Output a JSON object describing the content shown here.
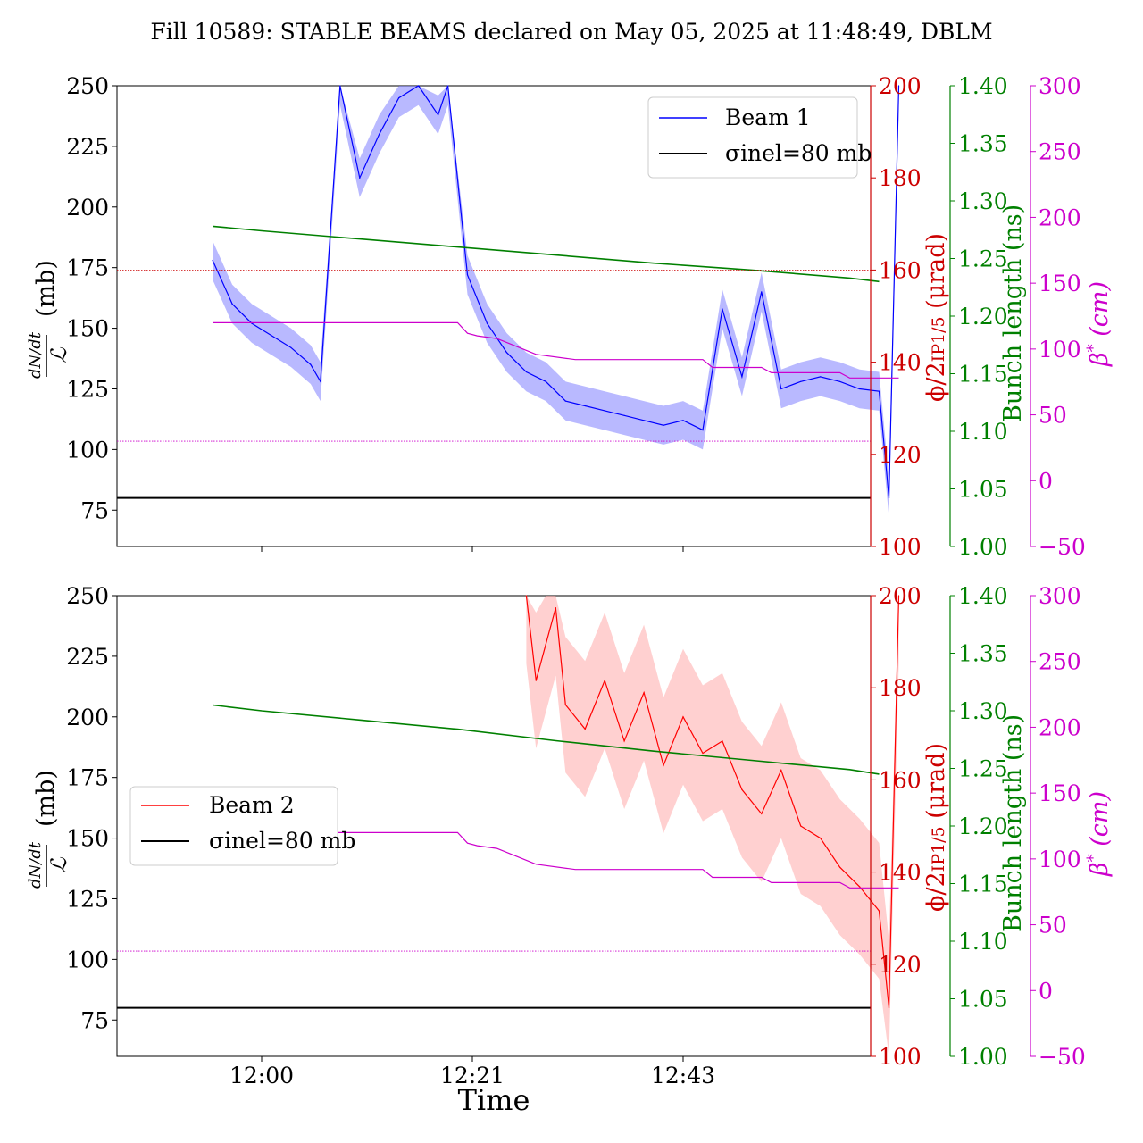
{
  "title": "Fill 10589: STABLE BEAMS declared on May 05, 2025 at 11:48:49, DBLM",
  "xlabel": "Time",
  "colors": {
    "beam1": "#0000ff",
    "beam1_band": "#8080ff",
    "beam2": "#ff0000",
    "beam2_band": "#ffaaaa",
    "bunch_length": "#008000",
    "beta_star": "#cc00cc",
    "crossing_angle": "#cc0000",
    "sigma": "#000000"
  },
  "chart_data": [
    {
      "type": "line",
      "panel": "top",
      "x_ticks": [
        "12:00",
        "12:21",
        "12:43"
      ],
      "ylabel": "dN/dt / L (mb)",
      "ylim": [
        60,
        250
      ],
      "y_ticks": [
        "75",
        "100",
        "125",
        "150",
        "175",
        "200",
        "225",
        "250"
      ],
      "legend": {
        "position": "top-right",
        "entries": [
          "Beam 1",
          "σinel=80 mb"
        ]
      },
      "sigma_inel_mb": 80,
      "axes": {
        "crossing_angle": {
          "label": "ϕ/2IP1/5 (μrad)",
          "range": [
            100,
            200
          ],
          "ticks": [
            "100",
            "120",
            "140",
            "160",
            "180",
            "200"
          ]
        },
        "bunch_length": {
          "label": "Bunch length (ns)",
          "range": [
            1.0,
            1.4
          ],
          "ticks": [
            "1.00",
            "1.05",
            "1.10",
            "1.15",
            "1.20",
            "1.25",
            "1.30",
            "1.35",
            "1.40"
          ]
        },
        "beta_star": {
          "label": "β* (cm)",
          "range": [
            -50,
            300
          ],
          "ticks": [
            "−50",
            "0",
            "50",
            "100",
            "150",
            "200",
            "250",
            "300"
          ]
        }
      },
      "series": [
        {
          "name": "Beam 1",
          "x_min": [
            -5,
            -3,
            -1,
            1,
            3,
            5,
            6,
            8,
            10,
            12,
            14,
            16,
            18,
            19,
            21,
            23,
            25,
            27,
            29,
            31,
            33,
            35,
            37,
            39,
            41,
            43,
            45,
            47,
            49,
            51,
            53,
            55,
            57,
            59,
            61,
            63,
            64,
            65
          ],
          "values": [
            178,
            160,
            152,
            147,
            142,
            135,
            128,
            250,
            212,
            230,
            245,
            250,
            238,
            250,
            172,
            152,
            140,
            132,
            128,
            120,
            118,
            116,
            114,
            112,
            110,
            112,
            108,
            158,
            130,
            165,
            125,
            128,
            130,
            128,
            125,
            124,
            80,
            250
          ],
          "band": 8
        },
        {
          "name": "Bunch length",
          "x_min": [
            -5,
            0,
            10,
            20,
            30,
            40,
            50,
            60,
            63
          ],
          "values": [
            1.278,
            1.274,
            1.267,
            1.26,
            1.253,
            1.246,
            1.24,
            1.233,
            1.23
          ]
        },
        {
          "name": "β*",
          "x_min": [
            -5,
            20,
            21,
            22,
            24,
            26,
            28,
            32,
            45,
            46,
            51,
            52,
            59,
            60,
            65
          ],
          "values": [
            120,
            120,
            112,
            110,
            108,
            102,
            96,
            92,
            92,
            86,
            86,
            82,
            82,
            78,
            78
          ]
        },
        {
          "name": "Crossing angle",
          "x_min": [
            -12,
            65
          ],
          "values": [
            160,
            160
          ]
        }
      ]
    },
    {
      "type": "line",
      "panel": "bottom",
      "x_ticks": [
        "12:00",
        "12:21",
        "12:43"
      ],
      "ylabel": "dN/dt / L (mb)",
      "ylim": [
        60,
        250
      ],
      "y_ticks": [
        "75",
        "100",
        "125",
        "150",
        "175",
        "200",
        "225",
        "250"
      ],
      "legend": {
        "position": "center-left",
        "entries": [
          "Beam 2",
          "σinel=80 mb"
        ]
      },
      "sigma_inel_mb": 80,
      "axes": {
        "crossing_angle": {
          "label": "ϕ/2IP1/5 (μrad)",
          "range": [
            100,
            200
          ],
          "ticks": [
            "100",
            "120",
            "140",
            "160",
            "180",
            "200"
          ]
        },
        "bunch_length": {
          "label": "Bunch length (ns)",
          "range": [
            1.0,
            1.4
          ],
          "ticks": [
            "1.00",
            "1.05",
            "1.10",
            "1.15",
            "1.20",
            "1.25",
            "1.30",
            "1.35",
            "1.40"
          ]
        },
        "beta_star": {
          "label": "β* (cm)",
          "range": [
            -50,
            300
          ],
          "ticks": [
            "−50",
            "0",
            "50",
            "100",
            "150",
            "200",
            "250",
            "300"
          ]
        }
      },
      "series": [
        {
          "name": "Beam 2",
          "x_min": [
            27,
            28,
            29,
            30,
            31,
            33,
            35,
            37,
            39,
            41,
            43,
            45,
            47,
            49,
            51,
            53,
            55,
            57,
            59,
            61,
            63,
            64,
            65
          ],
          "values": [
            250,
            215,
            230,
            245,
            205,
            195,
            215,
            190,
            210,
            180,
            200,
            185,
            190,
            170,
            160,
            178,
            155,
            150,
            138,
            130,
            120,
            80,
            250
          ],
          "band": 28
        },
        {
          "name": "Bunch length",
          "x_min": [
            -5,
            0,
            10,
            20,
            30,
            40,
            50,
            60,
            63
          ],
          "values": [
            1.305,
            1.3,
            1.292,
            1.284,
            1.274,
            1.265,
            1.257,
            1.249,
            1.245
          ]
        },
        {
          "name": "β*",
          "x_min": [
            -5,
            20,
            21,
            22,
            24,
            26,
            28,
            32,
            45,
            46,
            51,
            52,
            59,
            60,
            65
          ],
          "values": [
            120,
            120,
            112,
            110,
            108,
            102,
            96,
            92,
            92,
            86,
            86,
            82,
            82,
            78,
            78
          ]
        },
        {
          "name": "Crossing angle",
          "x_min": [
            -12,
            65
          ],
          "values": [
            160,
            160
          ]
        }
      ]
    }
  ]
}
